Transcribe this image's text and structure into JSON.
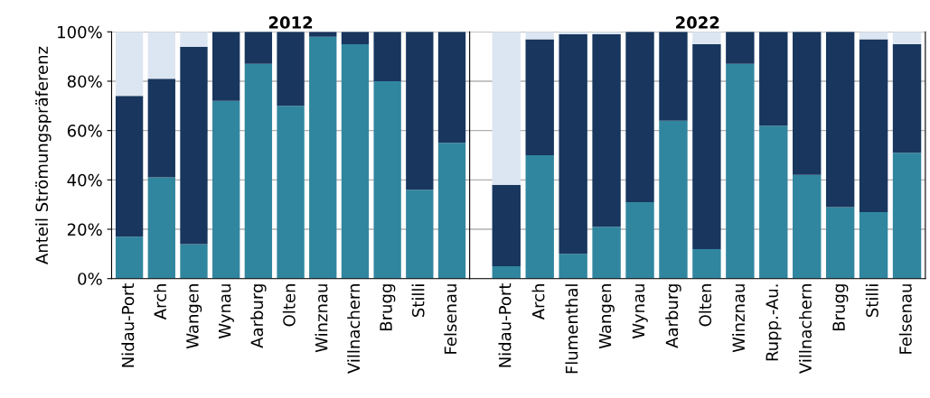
{
  "chart_data": [
    {
      "type": "bar",
      "title": "2012",
      "ylabel": "Anteil Strömungspräferenz",
      "stacked": true,
      "grid": "y",
      "categories": [
        "Nidau-Port",
        "Arch",
        "Wangen",
        "Wynau",
        "Aarburg",
        "Olten",
        "Winznau",
        "Villnachern",
        "Brugg",
        "Stilli",
        "Felsenau"
      ],
      "ylim": [
        0,
        100
      ],
      "yticks": [
        {
          "value": 0,
          "label": "0%"
        },
        {
          "value": 20,
          "label": "20%"
        },
        {
          "value": 40,
          "label": "40%"
        },
        {
          "value": 60,
          "label": "60%"
        },
        {
          "value": 80,
          "label": "80%"
        },
        {
          "value": 100,
          "label": "100%"
        }
      ],
      "series": [
        {
          "color": "#31869f",
          "values": [
            17,
            41,
            14,
            72,
            87,
            70,
            98,
            95,
            80,
            36,
            55
          ]
        },
        {
          "color": "#18365e",
          "values": [
            57,
            40,
            80,
            28,
            13,
            30,
            2,
            5,
            20,
            64,
            45
          ]
        },
        {
          "color": "#dce6f2",
          "values": [
            26,
            19,
            6,
            0,
            0,
            0,
            0,
            0,
            0,
            0,
            0
          ]
        }
      ]
    },
    {
      "type": "bar",
      "title": "2022",
      "stacked": true,
      "grid": "y",
      "tick_labels": "x",
      "categories": [
        "Nidau-Port",
        "Arch",
        "Flumenthal",
        "Wangen",
        "Wynau",
        "Aarburg",
        "Olten",
        "Winznau",
        "Rupp.-Au.",
        "Villnachern",
        "Brugg",
        "Stilli",
        "Felsenau"
      ],
      "ylim": [
        0,
        100
      ],
      "yticks": [
        {
          "value": 0,
          "label": null
        },
        {
          "value": 20,
          "label": null
        },
        {
          "value": 40,
          "label": null
        },
        {
          "value": 60,
          "label": null
        },
        {
          "value": 80,
          "label": null
        },
        {
          "value": 100,
          "label": null
        }
      ],
      "series": [
        {
          "color": "#31869f",
          "values": [
            5,
            50,
            10,
            21,
            31,
            64,
            12,
            87,
            62,
            42,
            29,
            27,
            51
          ]
        },
        {
          "color": "#18365e",
          "values": [
            33,
            47,
            89,
            78,
            69,
            36,
            83,
            13,
            38,
            58,
            71,
            70,
            44
          ]
        },
        {
          "color": "#dce6f2",
          "values": [
            62,
            3,
            1,
            1,
            0,
            0,
            5,
            0,
            0,
            0,
            0,
            3,
            5
          ]
        }
      ]
    }
  ]
}
